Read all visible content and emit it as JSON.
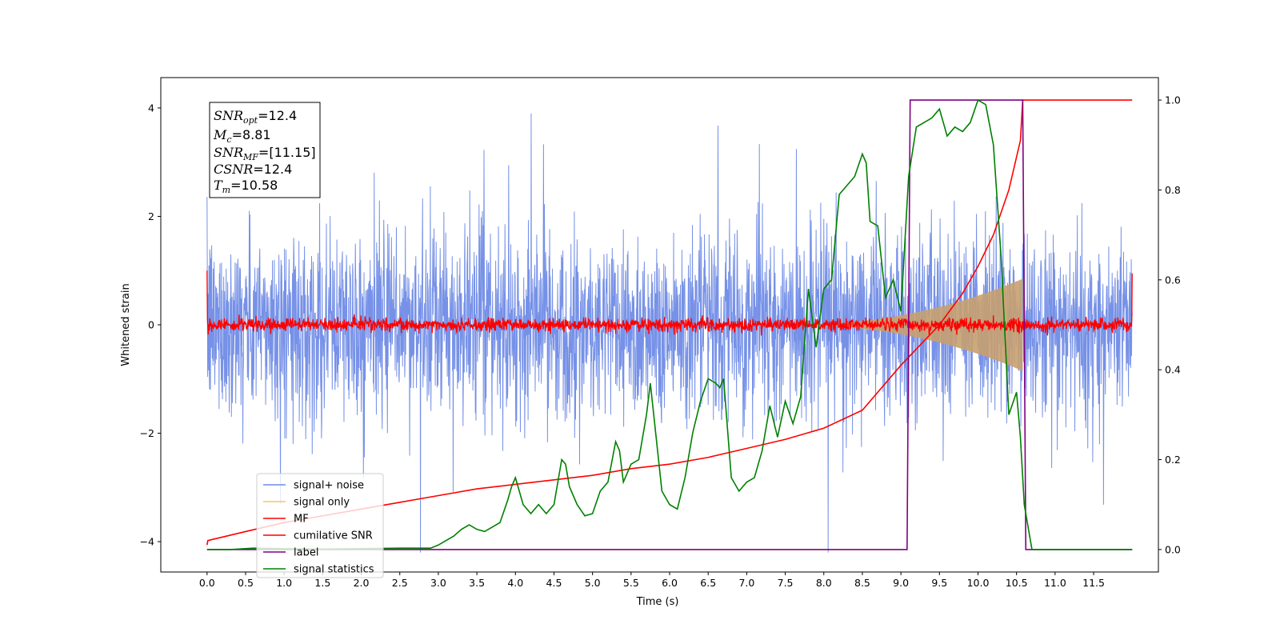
{
  "chart_data": {
    "type": "line",
    "xlabel": "Time (s)",
    "ylabel": "Whitened strain",
    "xlim": [
      -0.6,
      12.34
    ],
    "ylim": [
      -4.56,
      4.56
    ],
    "y2lim": [
      -0.05,
      1.05
    ],
    "x_ticks": [
      "0.0",
      "0.5",
      "1.0",
      "1.5",
      "2.0",
      "2.5",
      "3.0",
      "3.5",
      "4.0",
      "4.5",
      "5.0",
      "5.5",
      "6.0",
      "6.5",
      "7.0",
      "7.5",
      "8.0",
      "8.5",
      "9.0",
      "9.5",
      "10.0",
      "10.5",
      "11.0",
      "11.5"
    ],
    "y_ticks": [
      "4",
      "2",
      "0",
      "−2",
      "−4"
    ],
    "y2_ticks": [
      "1.0",
      "0.8",
      "0.6",
      "0.4",
      "0.2",
      "0.0"
    ],
    "info_box": {
      "snr_opt": {
        "sym": "SNR",
        "sub": "opt",
        "value": "=12.4"
      },
      "mc": {
        "sym": "M",
        "sub": "c",
        "value": "=8.81"
      },
      "snr_mf": {
        "sym": "SNR",
        "sub": "MF",
        "value": "=[11.15]"
      },
      "csnr": {
        "sym": "CSNR",
        "sub": "",
        "value": "=12.4"
      },
      "tm": {
        "sym": "T",
        "sub": "m",
        "value": "=10.58"
      }
    },
    "series": [
      {
        "name": "signal+ noise",
        "axis": "left",
        "color": "#6f8be6",
        "noise_std": 0.85,
        "x_range": [
          0.0,
          12.0
        ]
      },
      {
        "name": "signal only",
        "axis": "left",
        "color": "#f5c85c",
        "fill_color": "#c8a070",
        "envelope": {
          "t_start": 7.5,
          "t_end": 10.58,
          "amp_end": 0.85
        }
      },
      {
        "name": "MF",
        "axis": "left",
        "color": "#ff0000",
        "noise_std": 0.06,
        "x_range": [
          0.0,
          12.0
        ]
      },
      {
        "name": "cumilative SNR",
        "axis": "right",
        "color": "#ff0000",
        "x": [
          0.0,
          0.01,
          0.5,
          1.0,
          1.5,
          2.0,
          2.5,
          3.0,
          3.5,
          4.0,
          4.5,
          5.0,
          5.5,
          6.0,
          6.5,
          7.0,
          7.5,
          8.0,
          8.5,
          9.0,
          9.5,
          9.8,
          10.0,
          10.2,
          10.4,
          10.55,
          10.58,
          12.0
        ],
        "values": [
          0.01,
          0.02,
          0.04,
          0.06,
          0.075,
          0.09,
          0.105,
          0.12,
          0.135,
          0.145,
          0.155,
          0.165,
          0.18,
          0.19,
          0.205,
          0.225,
          0.245,
          0.27,
          0.31,
          0.41,
          0.5,
          0.57,
          0.63,
          0.7,
          0.8,
          0.91,
          1.0,
          1.0
        ]
      },
      {
        "name": "label",
        "axis": "right",
        "color": "#800080",
        "x": [
          0.0,
          9.08,
          9.12,
          10.58,
          10.62,
          12.0
        ],
        "values": [
          0.0,
          0.0,
          1.0,
          1.0,
          0.0,
          0.0
        ]
      },
      {
        "name": "signal statistics",
        "axis": "right",
        "color": "#008000",
        "x": [
          0.0,
          0.3,
          0.6,
          1.0,
          1.5,
          2.0,
          2.5,
          2.9,
          3.0,
          3.1,
          3.2,
          3.3,
          3.4,
          3.5,
          3.6,
          3.7,
          3.8,
          3.9,
          3.95,
          4.0,
          4.1,
          4.2,
          4.3,
          4.4,
          4.5,
          4.6,
          4.65,
          4.7,
          4.8,
          4.9,
          5.0,
          5.1,
          5.2,
          5.3,
          5.35,
          5.4,
          5.5,
          5.6,
          5.7,
          5.75,
          5.8,
          5.9,
          6.0,
          6.1,
          6.2,
          6.3,
          6.4,
          6.5,
          6.6,
          6.65,
          6.7,
          6.8,
          6.9,
          7.0,
          7.1,
          7.2,
          7.3,
          7.4,
          7.5,
          7.6,
          7.7,
          7.8,
          7.9,
          8.0,
          8.1,
          8.2,
          8.3,
          8.4,
          8.5,
          8.55,
          8.6,
          8.7,
          8.8,
          8.9,
          9.0,
          9.1,
          9.2,
          9.3,
          9.4,
          9.5,
          9.6,
          9.7,
          9.8,
          9.9,
          10.0,
          10.1,
          10.2,
          10.3,
          10.4,
          10.5,
          10.55,
          10.6,
          10.7,
          11.0,
          12.0
        ],
        "values": [
          0.0,
          0.0,
          0.003,
          0.002,
          0.001,
          0.002,
          0.003,
          0.003,
          0.01,
          0.02,
          0.03,
          0.045,
          0.055,
          0.045,
          0.04,
          0.05,
          0.06,
          0.11,
          0.14,
          0.16,
          0.1,
          0.08,
          0.1,
          0.08,
          0.1,
          0.2,
          0.19,
          0.14,
          0.1,
          0.075,
          0.08,
          0.13,
          0.15,
          0.24,
          0.22,
          0.15,
          0.19,
          0.2,
          0.3,
          0.37,
          0.29,
          0.13,
          0.1,
          0.09,
          0.16,
          0.26,
          0.33,
          0.38,
          0.37,
          0.36,
          0.38,
          0.16,
          0.13,
          0.15,
          0.16,
          0.22,
          0.32,
          0.25,
          0.33,
          0.28,
          0.34,
          0.58,
          0.45,
          0.58,
          0.6,
          0.79,
          0.81,
          0.83,
          0.88,
          0.86,
          0.73,
          0.72,
          0.56,
          0.6,
          0.53,
          0.83,
          0.94,
          0.95,
          0.96,
          0.98,
          0.92,
          0.94,
          0.93,
          0.95,
          1.0,
          0.99,
          0.9,
          0.65,
          0.3,
          0.35,
          0.25,
          0.1,
          0.0,
          0.0,
          0.0
        ]
      }
    ],
    "legend_position": "lower-left"
  }
}
